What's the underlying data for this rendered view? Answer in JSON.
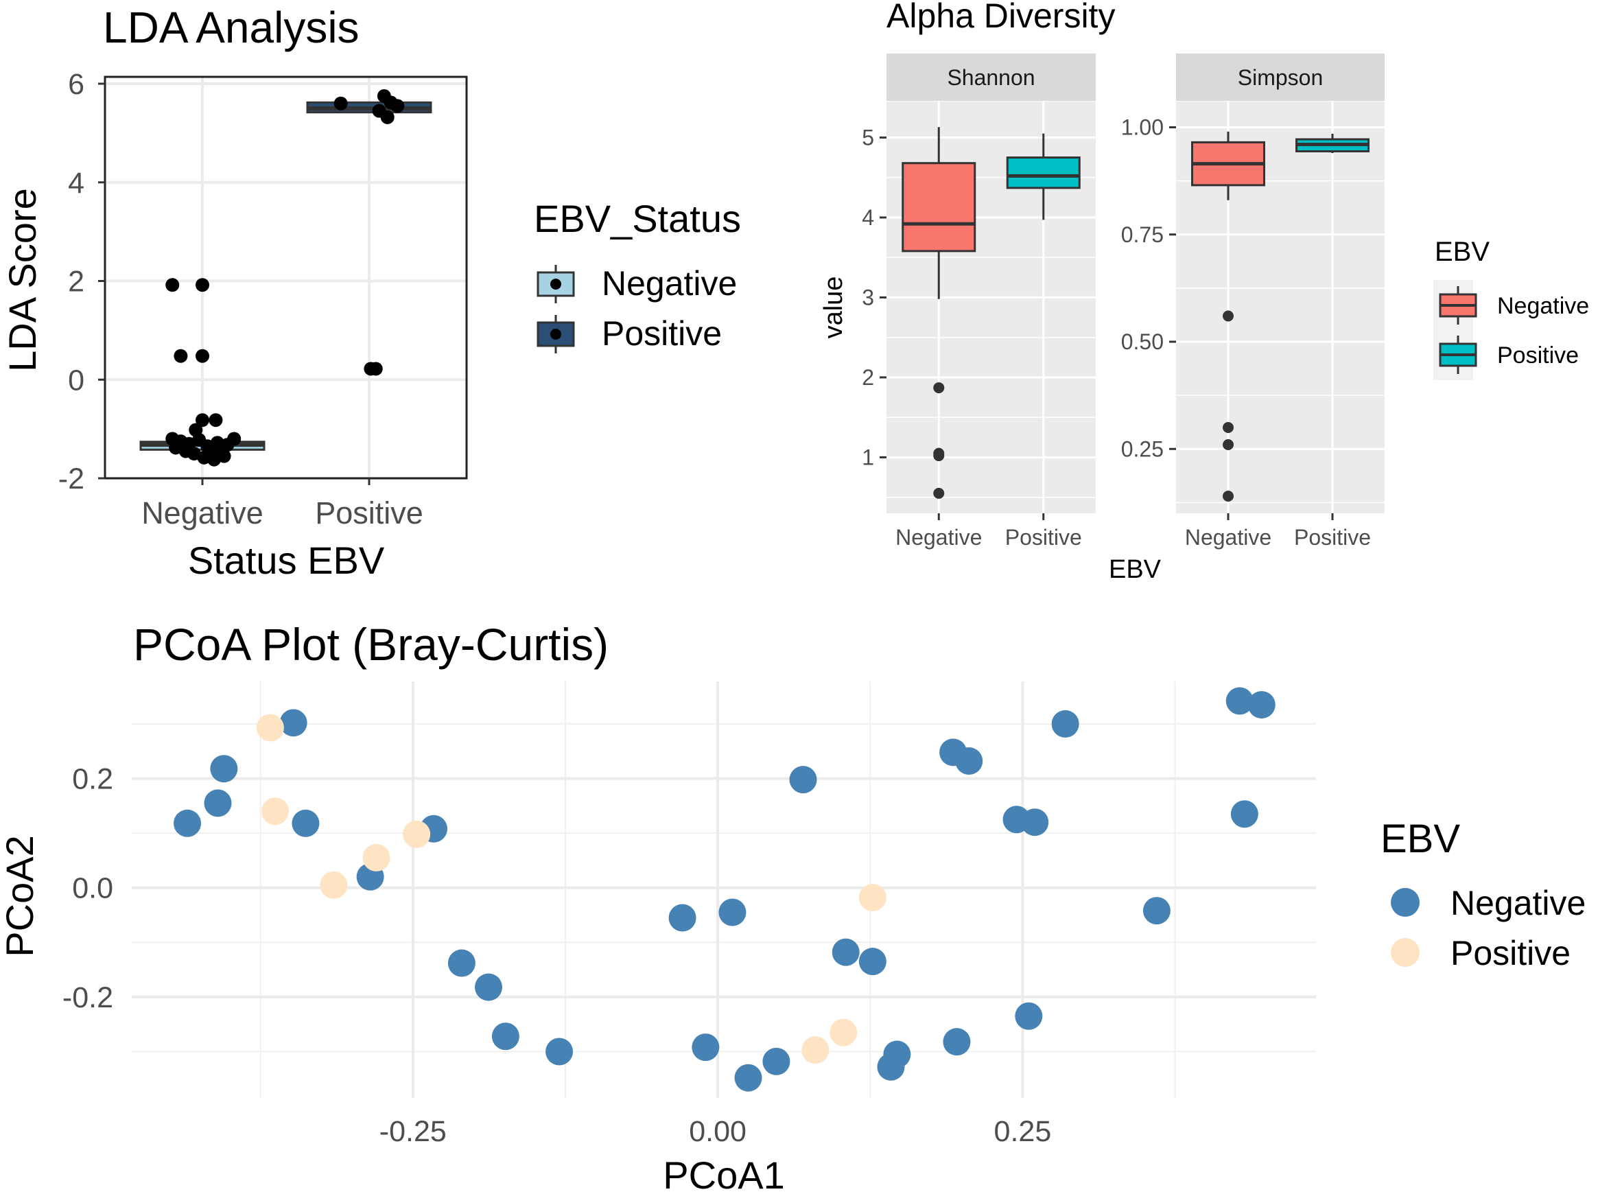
{
  "chart_data": [
    {
      "id": "lda",
      "type": "boxplot-jitter",
      "title": "LDA Analysis",
      "xlabel": "Status EBV",
      "ylabel": "LDA Score",
      "categories": [
        "Negative",
        "Positive"
      ],
      "ylim": [
        -2,
        6
      ],
      "yticks": [
        -2,
        0,
        2,
        4,
        6
      ],
      "legend": {
        "title": "EBV_Status",
        "entries": [
          {
            "label": "Negative",
            "color": "#a6d3e3"
          },
          {
            "label": "Positive",
            "color": "#2b4f74"
          }
        ],
        "position": "right"
      },
      "boxes": [
        {
          "category": "Negative",
          "q1": -1.42,
          "median": -1.32,
          "q3": -1.26,
          "lower": -1.42,
          "upper": -1.26
        },
        {
          "category": "Positive",
          "q1": 5.42,
          "median": 5.5,
          "q3": 5.62,
          "lower": 5.42,
          "upper": 5.62
        }
      ],
      "points": [
        {
          "category": "Negative",
          "jitter": -0.18,
          "y": 1.92
        },
        {
          "category": "Negative",
          "jitter": 0.0,
          "y": 1.92
        },
        {
          "category": "Negative",
          "jitter": -0.13,
          "y": 0.48
        },
        {
          "category": "Negative",
          "jitter": 0.0,
          "y": 0.48
        },
        {
          "category": "Negative",
          "jitter": 0.0,
          "y": -0.82
        },
        {
          "category": "Negative",
          "jitter": 0.08,
          "y": -0.82
        },
        {
          "category": "Negative",
          "jitter": -0.04,
          "y": -1.02
        },
        {
          "category": "Negative",
          "jitter": -0.18,
          "y": -1.2
        },
        {
          "category": "Negative",
          "jitter": -0.13,
          "y": -1.25
        },
        {
          "category": "Negative",
          "jitter": -0.08,
          "y": -1.3
        },
        {
          "category": "Negative",
          "jitter": -0.02,
          "y": -1.22
        },
        {
          "category": "Negative",
          "jitter": 0.03,
          "y": -1.35
        },
        {
          "category": "Negative",
          "jitter": 0.09,
          "y": -1.28
        },
        {
          "category": "Negative",
          "jitter": 0.15,
          "y": -1.32
        },
        {
          "category": "Negative",
          "jitter": 0.19,
          "y": -1.2
        },
        {
          "category": "Negative",
          "jitter": -0.16,
          "y": -1.38
        },
        {
          "category": "Negative",
          "jitter": -0.1,
          "y": -1.45
        },
        {
          "category": "Negative",
          "jitter": -0.05,
          "y": -1.5
        },
        {
          "category": "Negative",
          "jitter": 0.01,
          "y": -1.58
        },
        {
          "category": "Negative",
          "jitter": 0.06,
          "y": -1.48
        },
        {
          "category": "Negative",
          "jitter": 0.11,
          "y": -1.4
        },
        {
          "category": "Negative",
          "jitter": 0.07,
          "y": -1.62
        },
        {
          "category": "Negative",
          "jitter": 0.13,
          "y": -1.55
        },
        {
          "category": "Negative",
          "jitter": -0.12,
          "y": -1.3
        },
        {
          "category": "Positive",
          "jitter": 0.01,
          "y": 0.22
        },
        {
          "category": "Positive",
          "jitter": 0.04,
          "y": 0.22
        },
        {
          "category": "Positive",
          "jitter": -0.17,
          "y": 5.6
        },
        {
          "category": "Positive",
          "jitter": 0.09,
          "y": 5.75
        },
        {
          "category": "Positive",
          "jitter": 0.13,
          "y": 5.62
        },
        {
          "category": "Positive",
          "jitter": 0.17,
          "y": 5.55
        },
        {
          "category": "Positive",
          "jitter": 0.06,
          "y": 5.45
        },
        {
          "category": "Positive",
          "jitter": 0.11,
          "y": 5.32
        }
      ]
    },
    {
      "id": "alpha",
      "type": "boxplot-facet",
      "title": "Alpha Diversity",
      "xlabel": "EBV",
      "ylabel": "value",
      "legend": {
        "title": "EBV",
        "entries": [
          {
            "label": "Negative",
            "color": "#f8766d"
          },
          {
            "label": "Positive",
            "color": "#00bfc4"
          }
        ],
        "position": "right"
      },
      "panels": [
        {
          "name": "Shannon",
          "categories": [
            "Negative",
            "Positive"
          ],
          "ylim": [
            0.3,
            5.45
          ],
          "yticks": [
            1,
            2,
            3,
            4,
            5
          ],
          "ytick_labels": [
            "1",
            "2",
            "3",
            "4",
            "5"
          ],
          "boxes": [
            {
              "category": "Negative",
              "lower": 2.98,
              "q1": 3.58,
              "median": 3.92,
              "q3": 4.68,
              "upper": 5.13,
              "outliers": [
                1.87,
                1.05,
                1.02,
                0.55
              ]
            },
            {
              "category": "Positive",
              "lower": 3.97,
              "q1": 4.37,
              "median": 4.52,
              "q3": 4.75,
              "upper": 5.05,
              "outliers": []
            }
          ]
        },
        {
          "name": "Simpson",
          "categories": [
            "Negative",
            "Positive"
          ],
          "ylim": [
            0.1,
            1.06
          ],
          "yticks": [
            0.25,
            0.5,
            0.75,
            1.0
          ],
          "ytick_labels": [
            "0.25",
            "0.50",
            "0.75",
            "1.00"
          ],
          "boxes": [
            {
              "category": "Negative",
              "lower": 0.83,
              "q1": 0.865,
              "median": 0.915,
              "q3": 0.965,
              "upper": 0.99,
              "outliers": [
                0.56,
                0.3,
                0.26,
                0.14
              ]
            },
            {
              "category": "Positive",
              "lower": 0.94,
              "q1": 0.944,
              "median": 0.96,
              "q3": 0.972,
              "upper": 0.985,
              "outliers": []
            }
          ]
        }
      ]
    },
    {
      "id": "pcoa",
      "type": "scatter",
      "title": "PCoA Plot (Bray-Curtis)",
      "xlabel": "PCoA1",
      "ylabel": "PCoA2",
      "xlim": [
        -0.4806,
        0.4906
      ],
      "ylim": [
        -0.3848,
        0.3778
      ],
      "xticks": [
        -0.25,
        0.0,
        0.25
      ],
      "xtick_labels": [
        "-0.25",
        "0.00",
        "0.25"
      ],
      "yticks": [
        -0.2,
        0.0,
        0.2
      ],
      "ytick_labels": [
        "-0.2",
        "0.0",
        "0.2"
      ],
      "legend": {
        "title": "EBV",
        "entries": [
          {
            "label": "Negative",
            "color": "#4682b4"
          },
          {
            "label": "Positive",
            "color": "#ffe4c4"
          }
        ],
        "position": "right"
      },
      "series": [
        {
          "name": "Negative",
          "points": [
            [
              -0.435,
              0.118
            ],
            [
              -0.41,
              0.155
            ],
            [
              -0.405,
              0.218
            ],
            [
              -0.348,
              0.302
            ],
            [
              -0.338,
              0.118
            ],
            [
              -0.233,
              0.108
            ],
            [
              -0.285,
              0.02
            ],
            [
              -0.21,
              -0.138
            ],
            [
              -0.188,
              -0.182
            ],
            [
              -0.174,
              -0.272
            ],
            [
              -0.13,
              -0.3
            ],
            [
              -0.029,
              -0.055
            ],
            [
              0.012,
              -0.045
            ],
            [
              -0.01,
              -0.292
            ],
            [
              0.025,
              -0.348
            ],
            [
              0.048,
              -0.318
            ],
            [
              0.07,
              0.198
            ],
            [
              0.105,
              -0.118
            ],
            [
              0.127,
              -0.135
            ],
            [
              0.147,
              -0.305
            ],
            [
              0.142,
              -0.328
            ],
            [
              0.196,
              -0.282
            ],
            [
              0.193,
              0.248
            ],
            [
              0.206,
              0.232
            ],
            [
              0.245,
              0.125
            ],
            [
              0.26,
              0.12
            ],
            [
              0.255,
              -0.235
            ],
            [
              0.285,
              0.3
            ],
            [
              0.36,
              -0.042
            ],
            [
              0.428,
              0.342
            ],
            [
              0.446,
              0.335
            ],
            [
              0.432,
              0.135
            ]
          ]
        },
        {
          "name": "Positive",
          "points": [
            [
              -0.367,
              0.293
            ],
            [
              -0.363,
              0.14
            ],
            [
              -0.315,
              0.005
            ],
            [
              -0.28,
              0.055
            ],
            [
              -0.247,
              0.098
            ],
            [
              0.127,
              -0.018
            ],
            [
              0.08,
              -0.297
            ],
            [
              0.103,
              -0.265
            ]
          ]
        }
      ]
    }
  ]
}
